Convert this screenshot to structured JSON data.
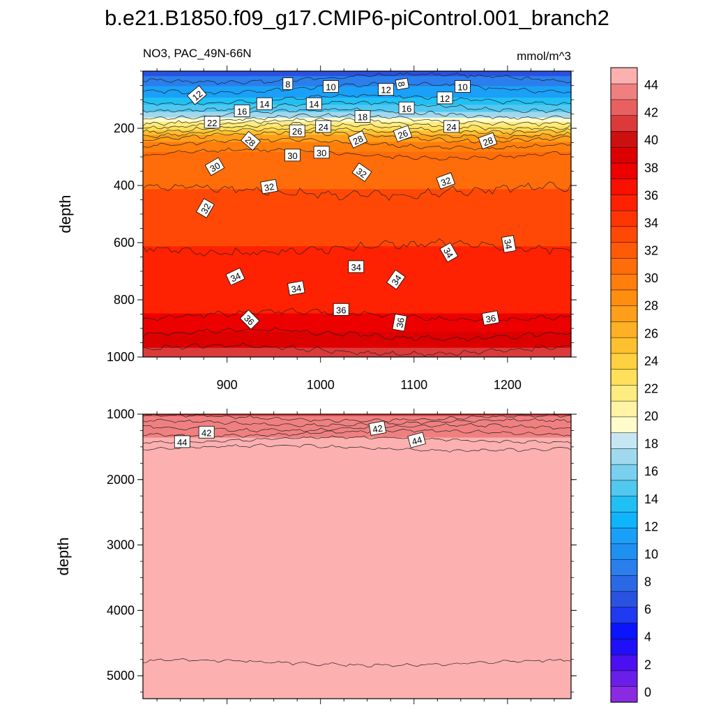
{
  "chart_data": {
    "type": "heatmap",
    "title": "b.e21.B1850.f09_g17.CMIP6-piControl.001_branch2",
    "variable_label": "NO3, PAC_49N-66N",
    "units": "mmol/m^3",
    "x_ticks": [
      900,
      1000,
      1100,
      1200
    ],
    "xlim": [
      810,
      1268
    ],
    "ylabel": "depth",
    "upper_panel": {
      "ylim": [
        1000,
        0
      ],
      "y_ticks": [
        200,
        400,
        600,
        800,
        1000
      ],
      "contour_depth_profile": [
        {
          "depth": 25,
          "value": 8
        },
        {
          "depth": 60,
          "value": 10
        },
        {
          "depth": 100,
          "value": 12
        },
        {
          "depth": 125,
          "value": 14
        },
        {
          "depth": 150,
          "value": 16
        },
        {
          "depth": 170,
          "value": 18
        },
        {
          "depth": 185,
          "value": 20
        },
        {
          "depth": 200,
          "value": 22
        },
        {
          "depth": 215,
          "value": 24
        },
        {
          "depth": 230,
          "value": 26
        },
        {
          "depth": 255,
          "value": 28
        },
        {
          "depth": 290,
          "value": 30
        },
        {
          "depth": 420,
          "value": 32
        },
        {
          "depth": 620,
          "value": 34
        },
        {
          "depth": 855,
          "value": 36
        },
        {
          "depth": 920,
          "value": 38
        },
        {
          "depth": 975,
          "value": 40
        }
      ],
      "contour_labels": [
        {
          "x": 868,
          "depth": 85,
          "text": "12",
          "rot": -40
        },
        {
          "x": 965,
          "depth": 45,
          "text": "8",
          "rot": 0
        },
        {
          "x": 1011,
          "depth": 55,
          "text": "10",
          "rot": 0
        },
        {
          "x": 1070,
          "depth": 65,
          "text": "12",
          "rot": 0
        },
        {
          "x": 1087,
          "depth": 45,
          "text": "8",
          "rot": 80
        },
        {
          "x": 1152,
          "depth": 55,
          "text": "10",
          "rot": 0
        },
        {
          "x": 1133,
          "depth": 95,
          "text": "12",
          "rot": 0
        },
        {
          "x": 940,
          "depth": 115,
          "text": "14",
          "rot": 0
        },
        {
          "x": 993,
          "depth": 115,
          "text": "14",
          "rot": 0
        },
        {
          "x": 1092,
          "depth": 130,
          "text": "16",
          "rot": 0
        },
        {
          "x": 916,
          "depth": 140,
          "text": "16",
          "rot": 0
        },
        {
          "x": 1045,
          "depth": 160,
          "text": "18",
          "rot": 0
        },
        {
          "x": 884,
          "depth": 180,
          "text": "22",
          "rot": 0
        },
        {
          "x": 1003,
          "depth": 195,
          "text": "24",
          "rot": 0
        },
        {
          "x": 1140,
          "depth": 195,
          "text": "24",
          "rot": 0
        },
        {
          "x": 975,
          "depth": 210,
          "text": "26",
          "rot": 0
        },
        {
          "x": 1088,
          "depth": 220,
          "text": "26",
          "rot": -20
        },
        {
          "x": 925,
          "depth": 245,
          "text": "28",
          "rot": 40
        },
        {
          "x": 1040,
          "depth": 240,
          "text": "28",
          "rot": -25
        },
        {
          "x": 1179,
          "depth": 245,
          "text": "28",
          "rot": -20
        },
        {
          "x": 970,
          "depth": 295,
          "text": "30",
          "rot": 0
        },
        {
          "x": 1001,
          "depth": 285,
          "text": "30",
          "rot": 0
        },
        {
          "x": 887,
          "depth": 335,
          "text": "30",
          "rot": -30
        },
        {
          "x": 1044,
          "depth": 355,
          "text": "32",
          "rot": 35
        },
        {
          "x": 1134,
          "depth": 385,
          "text": "32",
          "rot": -20
        },
        {
          "x": 945,
          "depth": 405,
          "text": "32",
          "rot": -10
        },
        {
          "x": 877,
          "depth": 480,
          "text": "32",
          "rot": -60
        },
        {
          "x": 1201,
          "depth": 605,
          "text": "34",
          "rot": 80
        },
        {
          "x": 1137,
          "depth": 635,
          "text": "34",
          "rot": 60
        },
        {
          "x": 1038,
          "depth": 685,
          "text": "34",
          "rot": 0
        },
        {
          "x": 909,
          "depth": 720,
          "text": "34",
          "rot": -25
        },
        {
          "x": 1081,
          "depth": 730,
          "text": "34",
          "rot": -55
        },
        {
          "x": 974,
          "depth": 760,
          "text": "34",
          "rot": -10
        },
        {
          "x": 1022,
          "depth": 835,
          "text": "36",
          "rot": 0
        },
        {
          "x": 924,
          "depth": 870,
          "text": "36",
          "rot": 45
        },
        {
          "x": 1085,
          "depth": 880,
          "text": "36",
          "rot": -80
        },
        {
          "x": 1182,
          "depth": 865,
          "text": "36",
          "rot": -10
        }
      ]
    },
    "lower_panel": {
      "ylim": [
        5350,
        1000
      ],
      "y_ticks": [
        1000,
        2000,
        3000,
        4000,
        5000
      ],
      "contour_depth_profile": [
        {
          "depth": 1060,
          "value": 42
        },
        {
          "depth": 1130,
          "value": 42
        },
        {
          "depth": 1210,
          "value": 42
        },
        {
          "depth": 1290,
          "value": 42
        },
        {
          "depth": 1390,
          "value": 44
        },
        {
          "depth": 1520,
          "value": 44
        },
        {
          "depth": 4800,
          "value": 44
        }
      ],
      "contour_labels": [
        {
          "x": 878,
          "depth": 1280,
          "text": "42",
          "rot": 0
        },
        {
          "x": 1061,
          "depth": 1220,
          "text": "42",
          "rot": -10
        },
        {
          "x": 852,
          "depth": 1425,
          "text": "44",
          "rot": 0
        },
        {
          "x": 1103,
          "depth": 1400,
          "text": "44",
          "rot": -15
        }
      ]
    },
    "colorbar": {
      "levels": [
        0,
        2,
        4,
        6,
        8,
        10,
        12,
        14,
        16,
        18,
        20,
        22,
        24,
        26,
        28,
        30,
        32,
        34,
        36,
        38,
        40,
        42,
        44
      ],
      "tick_labels": [
        "0",
        "2",
        "4",
        "6",
        "8",
        "10",
        "12",
        "14",
        "16",
        "18",
        "20",
        "22",
        "24",
        "26",
        "28",
        "30",
        "32",
        "34",
        "36",
        "38",
        "40",
        "42",
        "44"
      ],
      "colors": [
        "#8a2be2",
        "#6a1fe8",
        "#4b10f0",
        "#2010f8",
        "#0a14ff",
        "#1f3af0",
        "#2a52e0",
        "#2a68e6",
        "#2a7fec",
        "#1e90f2",
        "#1aa0f8",
        "#10b4fc",
        "#20c0f4",
        "#50c8f0",
        "#78d0ee",
        "#a0d8ee",
        "#c6e6f2",
        "#fffccc",
        "#fff4a6",
        "#ffec80",
        "#ffe05a",
        "#ffd040",
        "#ffc030",
        "#ffb024",
        "#ff9e18",
        "#ff8e10",
        "#ff7e0c",
        "#ff6c0a",
        "#ff5a08",
        "#ff4806",
        "#ff3604",
        "#ff2202",
        "#f81000",
        "#ec0000",
        "#dc0000",
        "#cc1010",
        "#dc3a3a",
        "#e86060",
        "#f08080",
        "#fcb0b0"
      ]
    }
  }
}
